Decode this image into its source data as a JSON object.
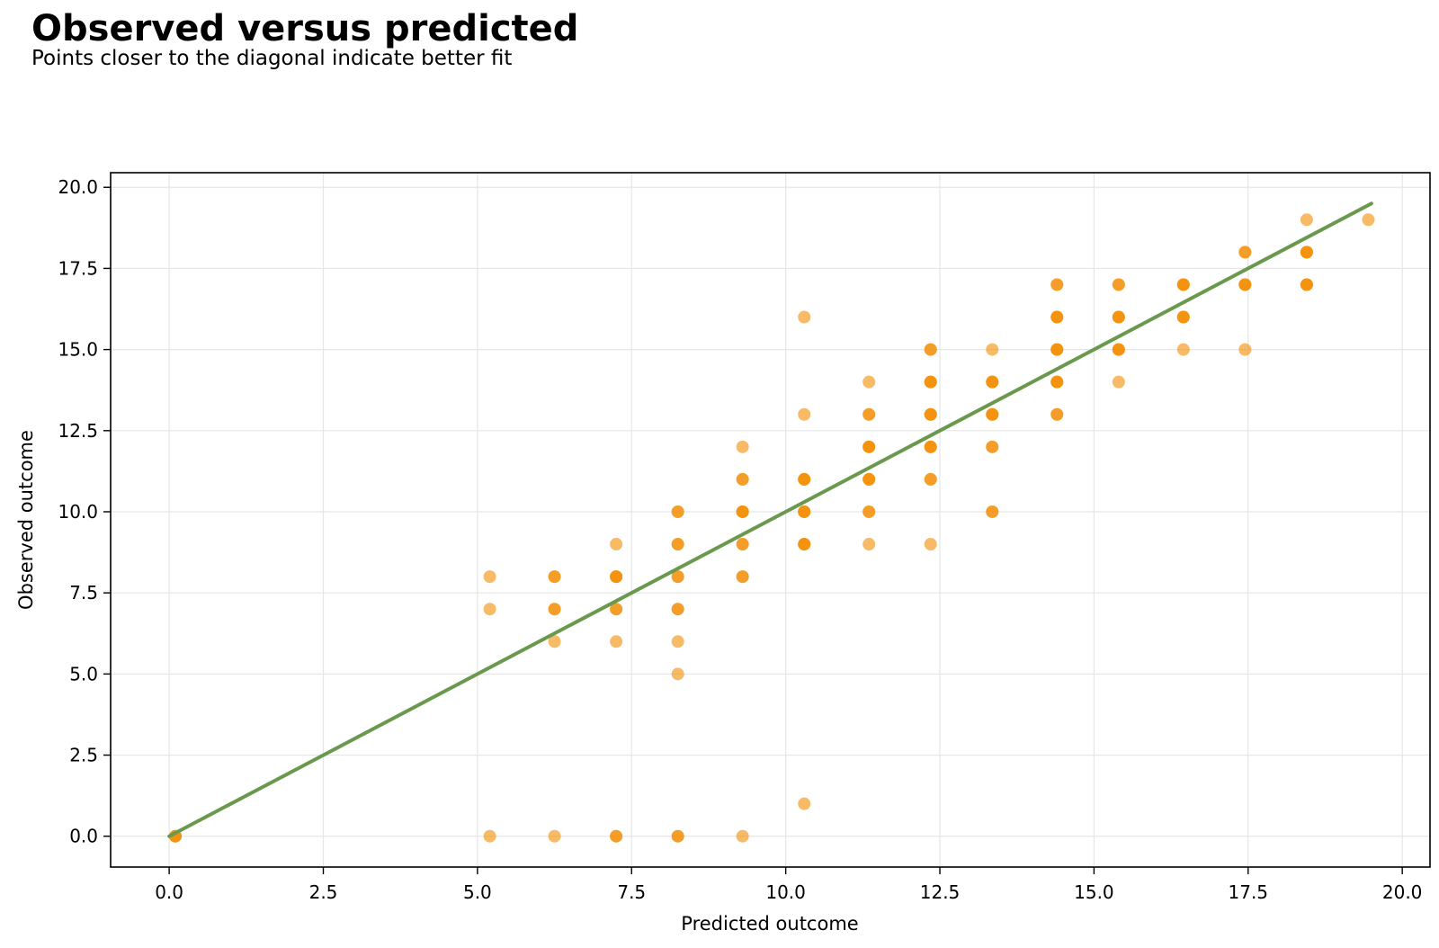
{
  "chart_data": {
    "type": "scatter",
    "title": "Observed versus predicted",
    "subtitle": "Points closer to the diagonal indicate better fit",
    "xlabel": "Predicted outcome",
    "ylabel": "Observed outcome",
    "xlim": [
      -0.95,
      20.45
    ],
    "ylim": [
      -0.95,
      20.45
    ],
    "xticks": [
      0.0,
      2.5,
      5.0,
      7.5,
      10.0,
      12.5,
      15.0,
      17.5,
      20.0
    ],
    "yticks": [
      0.0,
      2.5,
      5.0,
      7.5,
      10.0,
      12.5,
      15.0,
      17.5,
      20.0
    ],
    "xtick_labels": [
      "0.0",
      "2.5",
      "5.0",
      "7.5",
      "10.0",
      "12.5",
      "15.0",
      "17.5",
      "20.0"
    ],
    "ytick_labels": [
      "0.0",
      "2.5",
      "5.0",
      "7.5",
      "10.0",
      "12.5",
      "15.0",
      "17.5",
      "20.0"
    ],
    "grid": true,
    "point_color": "#f28c00",
    "line_color": "#6a994e",
    "reference_line": {
      "x": [
        0.0,
        19.5
      ],
      "y": [
        0.0,
        19.5
      ]
    },
    "points": [
      {
        "x": 0.1,
        "y": 0,
        "n": 3
      },
      {
        "x": 5.2,
        "y": 0,
        "n": 1
      },
      {
        "x": 5.2,
        "y": 7,
        "n": 1
      },
      {
        "x": 5.2,
        "y": 8,
        "n": 1
      },
      {
        "x": 6.25,
        "y": 0,
        "n": 1
      },
      {
        "x": 6.25,
        "y": 6,
        "n": 1
      },
      {
        "x": 6.25,
        "y": 7,
        "n": 2
      },
      {
        "x": 6.25,
        "y": 8,
        "n": 2
      },
      {
        "x": 7.25,
        "y": 0,
        "n": 2
      },
      {
        "x": 7.25,
        "y": 6,
        "n": 1
      },
      {
        "x": 7.25,
        "y": 7,
        "n": 2
      },
      {
        "x": 7.25,
        "y": 8,
        "n": 3
      },
      {
        "x": 7.25,
        "y": 9,
        "n": 1
      },
      {
        "x": 8.25,
        "y": 0,
        "n": 2
      },
      {
        "x": 8.25,
        "y": 5,
        "n": 1
      },
      {
        "x": 8.25,
        "y": 6,
        "n": 1
      },
      {
        "x": 8.25,
        "y": 7,
        "n": 2
      },
      {
        "x": 8.25,
        "y": 8,
        "n": 2
      },
      {
        "x": 8.25,
        "y": 9,
        "n": 2
      },
      {
        "x": 8.25,
        "y": 10,
        "n": 2
      },
      {
        "x": 9.3,
        "y": 0,
        "n": 1
      },
      {
        "x": 9.3,
        "y": 8,
        "n": 2
      },
      {
        "x": 9.3,
        "y": 9,
        "n": 2
      },
      {
        "x": 9.3,
        "y": 10,
        "n": 3
      },
      {
        "x": 9.3,
        "y": 11,
        "n": 2
      },
      {
        "x": 9.3,
        "y": 12,
        "n": 1
      },
      {
        "x": 10.3,
        "y": 1,
        "n": 1
      },
      {
        "x": 10.3,
        "y": 9,
        "n": 3
      },
      {
        "x": 10.3,
        "y": 10,
        "n": 3
      },
      {
        "x": 10.3,
        "y": 11,
        "n": 3
      },
      {
        "x": 10.3,
        "y": 13,
        "n": 1
      },
      {
        "x": 10.3,
        "y": 16,
        "n": 1
      },
      {
        "x": 11.35,
        "y": 9,
        "n": 1
      },
      {
        "x": 11.35,
        "y": 10,
        "n": 2
      },
      {
        "x": 11.35,
        "y": 11,
        "n": 3
      },
      {
        "x": 11.35,
        "y": 12,
        "n": 3
      },
      {
        "x": 11.35,
        "y": 13,
        "n": 2
      },
      {
        "x": 11.35,
        "y": 14,
        "n": 1
      },
      {
        "x": 12.35,
        "y": 9,
        "n": 1
      },
      {
        "x": 12.35,
        "y": 11,
        "n": 2
      },
      {
        "x": 12.35,
        "y": 12,
        "n": 3
      },
      {
        "x": 12.35,
        "y": 13,
        "n": 3
      },
      {
        "x": 12.35,
        "y": 14,
        "n": 3
      },
      {
        "x": 12.35,
        "y": 15,
        "n": 2
      },
      {
        "x": 13.35,
        "y": 10,
        "n": 2
      },
      {
        "x": 13.35,
        "y": 12,
        "n": 2
      },
      {
        "x": 13.35,
        "y": 13,
        "n": 3
      },
      {
        "x": 13.35,
        "y": 14,
        "n": 3
      },
      {
        "x": 13.35,
        "y": 15,
        "n": 1
      },
      {
        "x": 14.4,
        "y": 13,
        "n": 2
      },
      {
        "x": 14.4,
        "y": 14,
        "n": 3
      },
      {
        "x": 14.4,
        "y": 15,
        "n": 3
      },
      {
        "x": 14.4,
        "y": 16,
        "n": 3
      },
      {
        "x": 14.4,
        "y": 17,
        "n": 2
      },
      {
        "x": 15.4,
        "y": 14,
        "n": 1
      },
      {
        "x": 15.4,
        "y": 15,
        "n": 3
      },
      {
        "x": 15.4,
        "y": 16,
        "n": 3
      },
      {
        "x": 15.4,
        "y": 17,
        "n": 2
      },
      {
        "x": 16.45,
        "y": 15,
        "n": 1
      },
      {
        "x": 16.45,
        "y": 16,
        "n": 3
      },
      {
        "x": 16.45,
        "y": 17,
        "n": 3
      },
      {
        "x": 17.45,
        "y": 15,
        "n": 1
      },
      {
        "x": 17.45,
        "y": 17,
        "n": 3
      },
      {
        "x": 17.45,
        "y": 18,
        "n": 2
      },
      {
        "x": 18.45,
        "y": 17,
        "n": 3
      },
      {
        "x": 18.45,
        "y": 18,
        "n": 3
      },
      {
        "x": 18.45,
        "y": 19,
        "n": 1
      },
      {
        "x": 19.45,
        "y": 19,
        "n": 1
      }
    ]
  }
}
